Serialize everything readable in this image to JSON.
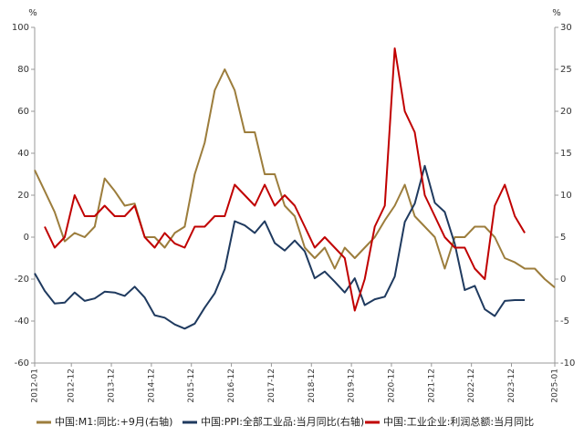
{
  "chart_data": {
    "type": "line",
    "y_unit": "%",
    "y2_unit": "%",
    "x": [
      "2012-01",
      "2012-04",
      "2012-07",
      "2012-10",
      "2013-01",
      "2013-04",
      "2013-07",
      "2013-10",
      "2014-01",
      "2014-04",
      "2014-07",
      "2014-10",
      "2015-01",
      "2015-04",
      "2015-07",
      "2015-10",
      "2016-01",
      "2016-04",
      "2016-07",
      "2016-10",
      "2017-01",
      "2017-04",
      "2017-07",
      "2017-10",
      "2018-01",
      "2018-04",
      "2018-07",
      "2018-10",
      "2019-01",
      "2019-04",
      "2019-07",
      "2019-10",
      "2020-01",
      "2020-04",
      "2020-07",
      "2020-10",
      "2021-01",
      "2021-04",
      "2021-07",
      "2021-10",
      "2022-01",
      "2022-04",
      "2022-07",
      "2022-10",
      "2023-01",
      "2023-04",
      "2023-07",
      "2023-10",
      "2024-01",
      "2024-04",
      "2024-07",
      "2024-10",
      "2025-01"
    ],
    "xlim": [
      "2012-01",
      "2025-01"
    ],
    "xticks": [
      "2012-01",
      "2012-12",
      "2013-12",
      "2014-12",
      "2015-12",
      "2016-12",
      "2017-12",
      "2018-12",
      "2019-12",
      "2020-12",
      "2021-12",
      "2022-12",
      "2023-12",
      "2025-01"
    ],
    "ylim": [
      -60,
      100
    ],
    "yticks": [
      -60,
      -40,
      -20,
      0,
      20,
      40,
      60,
      80,
      100
    ],
    "y2lim": [
      -10,
      30
    ],
    "y2ticks": [
      -10,
      -5,
      0,
      5,
      10,
      15,
      20,
      25,
      30
    ],
    "series": [
      {
        "name": "中国:M1:同比:+9月(右轴)",
        "color": "#9c7d3c",
        "axis": "y2",
        "values": [
          13,
          10.5,
          8,
          4.5,
          5.5,
          5,
          6.25,
          12,
          10.5,
          8.75,
          9,
          5,
          5,
          3.75,
          5.5,
          6.25,
          12.5,
          16.25,
          22.5,
          25,
          22.5,
          17.5,
          17.5,
          12.5,
          12.5,
          8.75,
          7.5,
          3.75,
          2.5,
          3.75,
          1.25,
          3.75,
          2.5,
          3.75,
          5,
          7,
          8.75,
          11.25,
          7.5,
          6.25,
          5,
          1.25,
          5,
          5,
          6.25,
          6.25,
          5,
          2.5,
          2,
          1.25,
          1.25,
          0,
          -1
        ]
      },
      {
        "name": "中国:PPI:全部工业品:当月同比(右轴)",
        "color": "#1f3a5f",
        "axis": "y2",
        "values": [
          0.7,
          -1.4,
          -2.9,
          -2.8,
          -1.6,
          -2.6,
          -2.3,
          -1.5,
          -1.6,
          -2.0,
          -0.9,
          -2.2,
          -4.3,
          -4.6,
          -5.4,
          -5.9,
          -5.3,
          -3.4,
          -1.7,
          1.2,
          6.9,
          6.4,
          5.5,
          6.9,
          4.3,
          3.4,
          4.6,
          3.3,
          0.1,
          0.9,
          -0.3,
          -1.6,
          0.1,
          -3.1,
          -2.4,
          -2.1,
          0.3,
          6.8,
          9.0,
          13.5,
          9.1,
          8.0,
          4.2,
          -1.3,
          -0.8,
          -3.6,
          -4.4,
          -2.6,
          -2.5,
          -2.5,
          null,
          null,
          null
        ]
      },
      {
        "name": "中国:工业企业:利润总额:当月同比",
        "color": "#c00000",
        "values": [
          null,
          5,
          -5,
          0,
          20,
          10,
          10,
          15,
          10,
          10,
          15,
          0,
          -5,
          2,
          -3,
          -5,
          5,
          5,
          10,
          10,
          25,
          20,
          15,
          25,
          15,
          20,
          15,
          5,
          -5,
          0,
          -5,
          -10,
          -35,
          -20,
          5,
          15,
          90,
          60,
          50,
          20,
          10,
          0,
          -5,
          -5,
          -15,
          -20,
          15,
          25,
          10,
          2,
          null,
          null,
          null
        ]
      }
    ]
  }
}
